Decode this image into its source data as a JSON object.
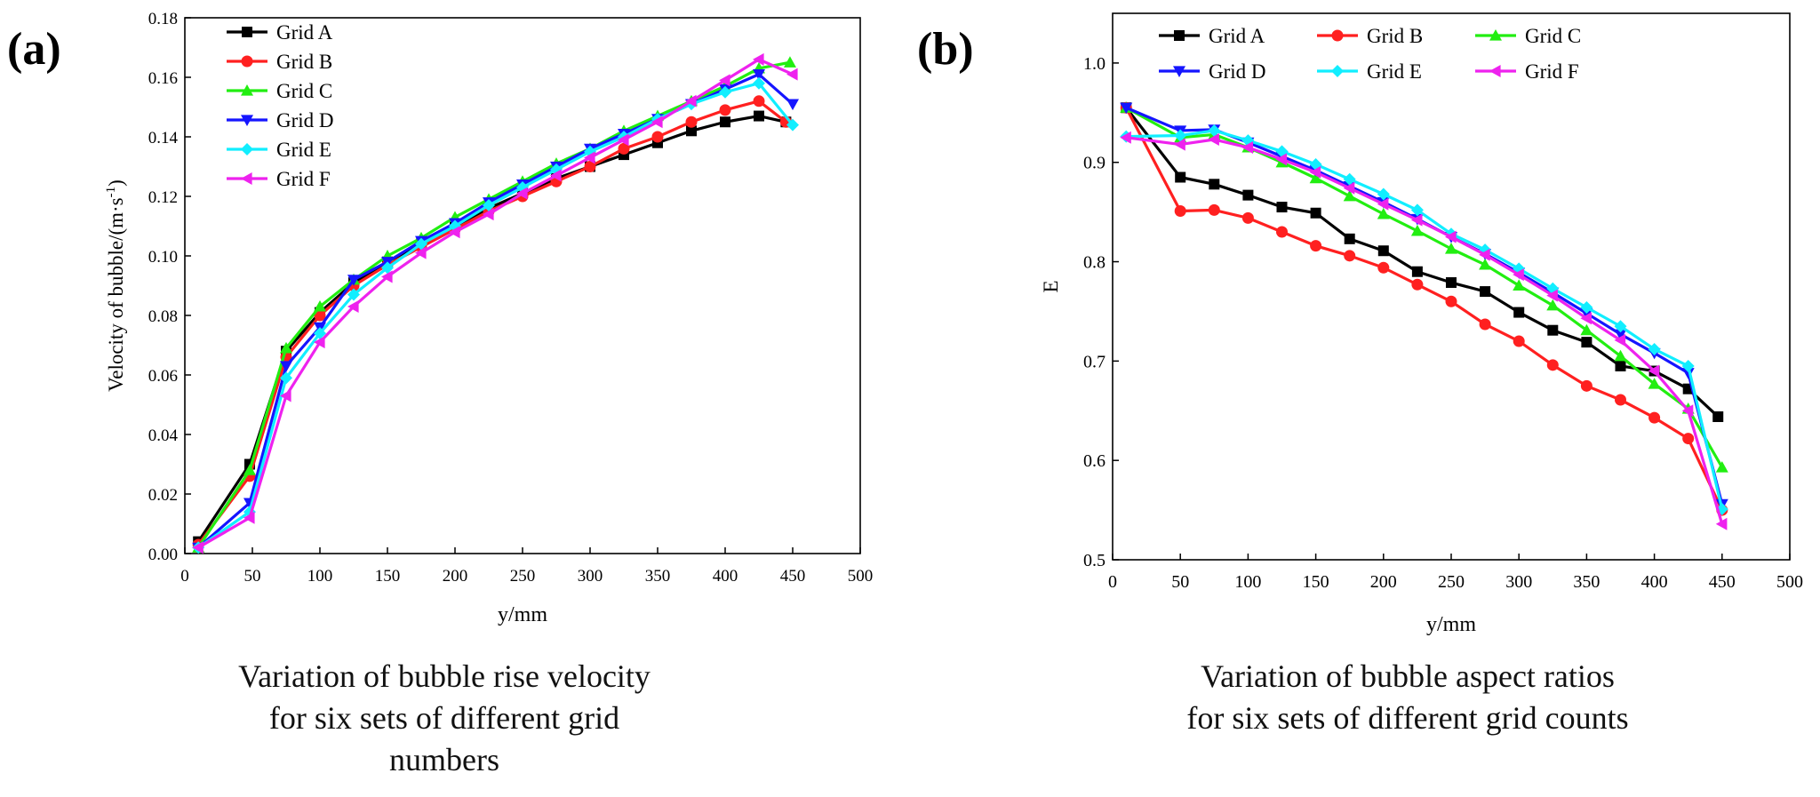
{
  "chart_data": [
    {
      "panel_label": "(a)",
      "type": "line",
      "xlabel": "y/mm",
      "ylabel": "Velocity of bubble/(m·s",
      "ylabel_sup": "-1",
      "ylabel_end": ")",
      "xlim": [
        0,
        500
      ],
      "ylim": [
        0.0,
        0.18
      ],
      "xticks": [
        "0",
        "50",
        "100",
        "150",
        "200",
        "250",
        "300",
        "350",
        "400",
        "450",
        "500"
      ],
      "yticks": [
        "0.00",
        "0.02",
        "0.04",
        "0.06",
        "0.08",
        "0.10",
        "0.12",
        "0.14",
        "0.16",
        "0.18"
      ],
      "legend_position": "top-left",
      "legend_layout": "column",
      "caption": [
        "Variation of bubble rise velocity",
        "for six sets of different grid",
        "numbers"
      ],
      "series": [
        {
          "name": "Grid A",
          "color": "#000000",
          "marker": "square",
          "x": [
            10,
            48,
            75,
            100,
            125,
            150,
            175,
            200,
            225,
            250,
            275,
            300,
            325,
            350,
            375,
            400,
            425,
            445
          ],
          "y": [
            0.004,
            0.03,
            0.068,
            0.081,
            0.091,
            0.098,
            0.104,
            0.11,
            0.116,
            0.121,
            0.126,
            0.13,
            0.134,
            0.138,
            0.142,
            0.145,
            0.147,
            0.145
          ]
        },
        {
          "name": "Grid B",
          "color": "#ff2020",
          "marker": "circle",
          "x": [
            10,
            48,
            75,
            100,
            125,
            150,
            175,
            200,
            225,
            250,
            275,
            300,
            325,
            350,
            375,
            400,
            425,
            445
          ],
          "y": [
            0.003,
            0.026,
            0.066,
            0.08,
            0.09,
            0.097,
            0.103,
            0.109,
            0.115,
            0.12,
            0.125,
            0.13,
            0.136,
            0.14,
            0.145,
            0.149,
            0.152,
            0.145
          ]
        },
        {
          "name": "Grid C",
          "color": "#22ee11",
          "marker": "triangle-up",
          "x": [
            10,
            48,
            75,
            100,
            125,
            150,
            175,
            200,
            225,
            250,
            275,
            300,
            325,
            350,
            375,
            400,
            425,
            448
          ],
          "y": [
            0.002,
            0.028,
            0.069,
            0.083,
            0.092,
            0.1,
            0.106,
            0.113,
            0.119,
            0.125,
            0.131,
            0.136,
            0.142,
            0.147,
            0.152,
            0.157,
            0.163,
            0.165
          ]
        },
        {
          "name": "Grid D",
          "color": "#1515ff",
          "marker": "triangle-down",
          "x": [
            10,
            48,
            75,
            100,
            125,
            150,
            175,
            200,
            225,
            250,
            275,
            300,
            325,
            350,
            375,
            400,
            425,
            450
          ],
          "y": [
            0.002,
            0.017,
            0.063,
            0.076,
            0.092,
            0.098,
            0.105,
            0.111,
            0.118,
            0.124,
            0.13,
            0.136,
            0.141,
            0.146,
            0.151,
            0.156,
            0.161,
            0.151
          ]
        },
        {
          "name": "Grid E",
          "color": "#11eeff",
          "marker": "diamond",
          "x": [
            10,
            48,
            75,
            100,
            125,
            150,
            175,
            200,
            225,
            250,
            275,
            300,
            325,
            350,
            375,
            400,
            425,
            450
          ],
          "y": [
            0.002,
            0.014,
            0.059,
            0.074,
            0.087,
            0.096,
            0.104,
            0.11,
            0.117,
            0.123,
            0.129,
            0.135,
            0.14,
            0.146,
            0.151,
            0.155,
            0.158,
            0.144
          ]
        },
        {
          "name": "Grid F",
          "color": "#ee22ee",
          "marker": "triangle-left",
          "x": [
            10,
            48,
            75,
            100,
            125,
            150,
            175,
            200,
            225,
            250,
            275,
            300,
            325,
            350,
            375,
            400,
            425,
            450
          ],
          "y": [
            0.002,
            0.012,
            0.053,
            0.071,
            0.083,
            0.093,
            0.101,
            0.108,
            0.114,
            0.121,
            0.127,
            0.133,
            0.139,
            0.145,
            0.152,
            0.159,
            0.166,
            0.161
          ]
        }
      ]
    },
    {
      "panel_label": "(b)",
      "type": "line",
      "xlabel": "y/mm",
      "ylabel": "E",
      "ylabel_sup": "",
      "ylabel_end": "",
      "xlim": [
        0,
        500
      ],
      "ylim": [
        0.5,
        1.05
      ],
      "xticks": [
        "0",
        "50",
        "100",
        "150",
        "200",
        "250",
        "300",
        "350",
        "400",
        "450",
        "500"
      ],
      "yticks": [
        "0.5",
        "0.6",
        "0.7",
        "0.8",
        "0.9",
        "1.0"
      ],
      "legend_position": "top",
      "legend_layout": "grid-3-columns",
      "caption": [
        "Variation of bubble aspect ratios",
        "for six sets of different grid counts"
      ],
      "series": [
        {
          "name": "Grid A",
          "color": "#000000",
          "marker": "square",
          "x": [
            10,
            50,
            75,
            100,
            125,
            150,
            175,
            200,
            225,
            250,
            275,
            300,
            325,
            350,
            375,
            400,
            425,
            447
          ],
          "y": [
            0.955,
            0.885,
            0.878,
            0.867,
            0.855,
            0.849,
            0.823,
            0.811,
            0.79,
            0.779,
            0.77,
            0.749,
            0.731,
            0.719,
            0.695,
            0.69,
            0.672,
            0.644
          ]
        },
        {
          "name": "Grid B",
          "color": "#ff2020",
          "marker": "circle",
          "x": [
            10,
            50,
            75,
            100,
            125,
            150,
            175,
            200,
            225,
            250,
            275,
            300,
            325,
            350,
            375,
            400,
            425,
            450
          ],
          "y": [
            0.955,
            0.851,
            0.852,
            0.844,
            0.83,
            0.816,
            0.806,
            0.794,
            0.777,
            0.76,
            0.737,
            0.72,
            0.696,
            0.675,
            0.661,
            0.643,
            0.622,
            0.55
          ]
        },
        {
          "name": "Grid C",
          "color": "#22ee11",
          "marker": "triangle-up",
          "x": [
            10,
            50,
            75,
            100,
            125,
            150,
            175,
            200,
            225,
            250,
            275,
            300,
            325,
            350,
            375,
            400,
            425,
            450
          ],
          "y": [
            0.955,
            0.925,
            0.928,
            0.915,
            0.9,
            0.884,
            0.866,
            0.848,
            0.831,
            0.813,
            0.797,
            0.776,
            0.756,
            0.731,
            0.705,
            0.677,
            0.652,
            0.593
          ]
        },
        {
          "name": "Grid D",
          "color": "#1515ff",
          "marker": "triangle-down",
          "x": [
            10,
            50,
            75,
            100,
            125,
            150,
            175,
            200,
            225,
            250,
            275,
            300,
            325,
            350,
            375,
            400,
            425,
            450
          ],
          "y": [
            0.955,
            0.932,
            0.933,
            0.92,
            0.906,
            0.892,
            0.876,
            0.86,
            0.843,
            0.825,
            0.808,
            0.789,
            0.769,
            0.748,
            0.727,
            0.708,
            0.688,
            0.556
          ]
        },
        {
          "name": "Grid E",
          "color": "#11eeff",
          "marker": "diamond",
          "x": [
            10,
            50,
            75,
            100,
            125,
            150,
            175,
            200,
            225,
            250,
            275,
            300,
            325,
            350,
            375,
            400,
            425,
            450
          ],
          "y": [
            0.926,
            0.927,
            0.932,
            0.922,
            0.911,
            0.898,
            0.883,
            0.868,
            0.852,
            0.828,
            0.812,
            0.793,
            0.773,
            0.754,
            0.735,
            0.712,
            0.695,
            0.551
          ]
        },
        {
          "name": "Grid F",
          "color": "#ee22ee",
          "marker": "triangle-left",
          "x": [
            10,
            50,
            75,
            100,
            125,
            150,
            175,
            200,
            225,
            250,
            275,
            300,
            325,
            350,
            375,
            400,
            425,
            450
          ],
          "y": [
            0.925,
            0.918,
            0.923,
            0.915,
            0.903,
            0.89,
            0.874,
            0.858,
            0.842,
            0.825,
            0.807,
            0.787,
            0.766,
            0.743,
            0.721,
            0.69,
            0.65,
            0.536
          ]
        }
      ]
    }
  ]
}
